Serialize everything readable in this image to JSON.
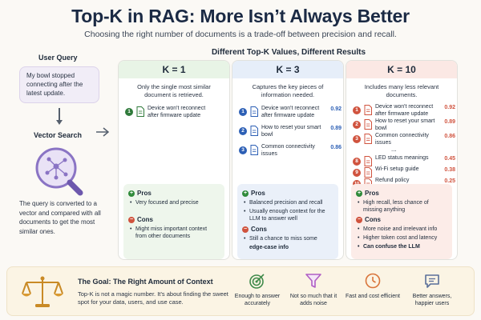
{
  "header": {
    "title": "Top-K in RAG: More Isn’t Always Better",
    "subtitle": "Choosing the right number of documents is a trade-off between precision and recall."
  },
  "left": {
    "query_label": "User Query",
    "query_text": "My bowl stopped connecting after the latest update.",
    "search_label": "Vector Search",
    "search_desc": "The query is converted to a vector and compared with all documents to get the most similar ones."
  },
  "section_title": "Different Top-K Values, Different Results",
  "columns": [
    {
      "title": "K = 1",
      "desc": "Only the single most similar document is retrieved.",
      "docs": [
        {
          "num": "1",
          "text": "Device won't reconnect after firmware update",
          "score": ""
        }
      ],
      "pros_label": "Pros",
      "pros": [
        "Very focused and precise"
      ],
      "cons_label": "Cons",
      "cons": [
        "Might miss important context from other documents"
      ]
    },
    {
      "title": "K = 3",
      "desc": "Captures the key pieces of information needed.",
      "docs": [
        {
          "num": "1",
          "text": "Device won't reconnect after firmware update",
          "score": "0.92"
        },
        {
          "num": "2",
          "text": "How to reset your smart bowl",
          "score": "0.89"
        },
        {
          "num": "3",
          "text": "Common connectivity issues",
          "score": "0.86"
        }
      ],
      "pros_label": "Pros",
      "pros": [
        "Balanced precision and recall",
        "Usually enough context for the LLM to answer well"
      ],
      "cons_label": "Cons",
      "cons": [
        "Still a chance to miss some",
        "edge-case info"
      ]
    },
    {
      "title": "K = 10",
      "desc": "Includes many less relevant documents.",
      "docs": [
        {
          "num": "1",
          "text": "Device won't reconnect after firmware update",
          "score": "0.92"
        },
        {
          "num": "2",
          "text": "How to reset your smart bowl",
          "score": "0.89"
        },
        {
          "num": "3",
          "text": "Common connectivity issues",
          "score": "0.86"
        },
        {
          "num": "8",
          "text": "LED status meanings",
          "score": "0.45"
        },
        {
          "num": "9",
          "text": "Wi-Fi setup guide",
          "score": "0.38"
        },
        {
          "num": "10",
          "text": "Refund policy",
          "score": "0.25"
        }
      ],
      "ellipsis": "...",
      "pros_label": "Pros",
      "pros": [
        "High recall, less chance of missing anything"
      ],
      "cons_label": "Cons",
      "cons": [
        "More noise and irrelevant info",
        "Higher token cost and latency",
        "Can confuse the LLM"
      ]
    }
  ],
  "bottom": {
    "goal_title": "The Goal: The Right Amount of Context",
    "goal_desc": "Top-K is not a magic number. It’s about finding the sweet spot for your data, users, and use case.",
    "items": [
      {
        "icon": "target-icon",
        "text": "Enough to answer accurately"
      },
      {
        "icon": "funnel-icon",
        "text": "Not so much that it adds noise"
      },
      {
        "icon": "clock-icon",
        "text": "Fast and cost efficient"
      },
      {
        "icon": "chat-icon",
        "text": "Better answers, happier users"
      }
    ]
  },
  "colors": {
    "k1": "#2f7a3a",
    "k3": "#2c5fb5",
    "k10": "#d0533e",
    "k1_bg": "#e8f4e6",
    "k3_bg": "#e6eef9",
    "k10_bg": "#fbe8e4"
  }
}
